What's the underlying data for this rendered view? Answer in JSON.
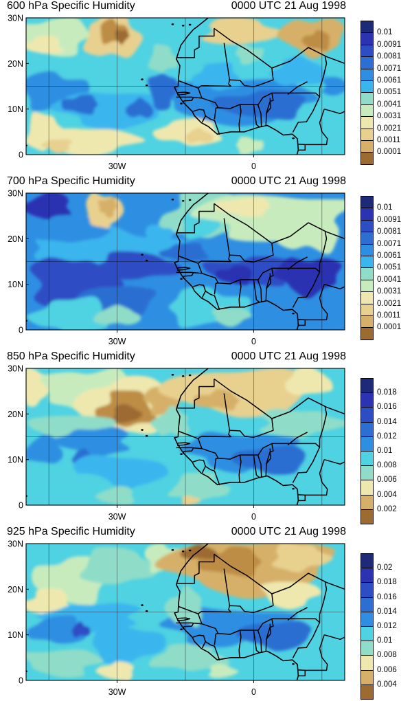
{
  "figure": {
    "panels": [
      {
        "title": "600 hPa Specific Humidity",
        "time": "0000 UTC 21 Aug 1998",
        "legend": [
          "0.01",
          "0.0091",
          "0.0081",
          "0.0071",
          "0.0061",
          "0.0051",
          "0.0041",
          "0.0031",
          "0.0021",
          "0.0011",
          "0.0001"
        ],
        "level": "600",
        "show_xlabels": true
      },
      {
        "title": "700 hPa Specific Humidity",
        "time": "0000 UTC 21 Aug 1998",
        "legend": [
          "0.01",
          "0.0091",
          "0.0081",
          "0.0071",
          "0.0061",
          "0.0051",
          "0.0041",
          "0.0031",
          "0.0021",
          "0.0011",
          "0.0001"
        ],
        "level": "700",
        "show_xlabels": true
      },
      {
        "title": "850 hPa Specific Humidity",
        "time": "0000 UTC 21 Aug 1998",
        "legend": [
          "0.018",
          "0.016",
          "0.014",
          "0.012",
          "0.01",
          "0.008",
          "0.006",
          "0.004",
          "0.002"
        ],
        "level": "850",
        "show_xlabels": true
      },
      {
        "title": "925 hPa Specific Humidity",
        "time": "0000 UTC 21 Aug 1998",
        "legend": [
          "0.02",
          "0.018",
          "0.016",
          "0.014",
          "0.012",
          "0.01",
          "0.008",
          "0.006",
          "0.004"
        ],
        "level": "925",
        "show_xlabels": true
      }
    ],
    "lat_labels": [
      "30N",
      "20N",
      "10N",
      "0"
    ],
    "lon_labels": [
      "30W",
      "0"
    ],
    "colors": [
      "#9c6b30",
      "#bd8c45",
      "#d6b068",
      "#e8d08f",
      "#eee8ae",
      "#c8ebbd",
      "#8fddc8",
      "#4fd2e2",
      "#3bb5ee",
      "#2e8fe2",
      "#2c6ed2",
      "#2d4dc4",
      "#2c33b2",
      "#1c2a78"
    ]
  }
}
